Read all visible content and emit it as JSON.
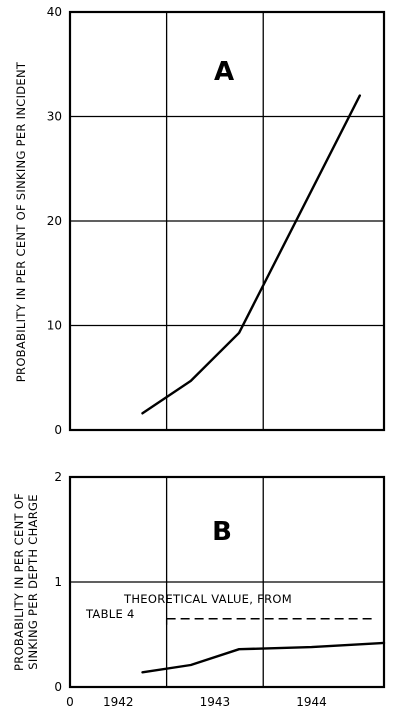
{
  "chart_data": [
    {
      "type": "line",
      "panel_label": "A",
      "ylabel": "PROBABILITY IN PER CENT OF SINKING PER INCIDENT",
      "ylim": [
        0,
        40
      ],
      "yticks": [
        "0",
        "10",
        "20",
        "30",
        "40"
      ],
      "xlim": [
        1941.5,
        1944.75
      ],
      "grid": true,
      "series": [
        {
          "x": [
            1942.25,
            1942.75,
            1943.25,
            1944.5
          ],
          "y": [
            1.6,
            4.7,
            9.3,
            32
          ]
        }
      ]
    },
    {
      "type": "line",
      "panel_label": "B",
      "ylabel_lines": [
        "PROBABILITY IN PER CENT OF",
        "SINKING PER DEPTH CHARGE"
      ],
      "ylim": [
        0,
        2
      ],
      "yticks": [
        "0",
        "1",
        "2"
      ],
      "xlim": [
        1941.5,
        1944.75
      ],
      "xticks": [
        "0",
        "1942",
        "1943",
        "1944"
      ],
      "grid": true,
      "series": [
        {
          "x": [
            1942.25,
            1942.75,
            1943.25,
            1944.0,
            1944.75
          ],
          "y": [
            0.14,
            0.21,
            0.36,
            0.38,
            0.42
          ]
        }
      ],
      "reference": {
        "label_lines": [
          "THEORETICAL VALUE, FROM",
          "TABLE 4"
        ],
        "y": 0.65,
        "x_start": 1942.5,
        "x_end": 1944.75
      }
    }
  ]
}
